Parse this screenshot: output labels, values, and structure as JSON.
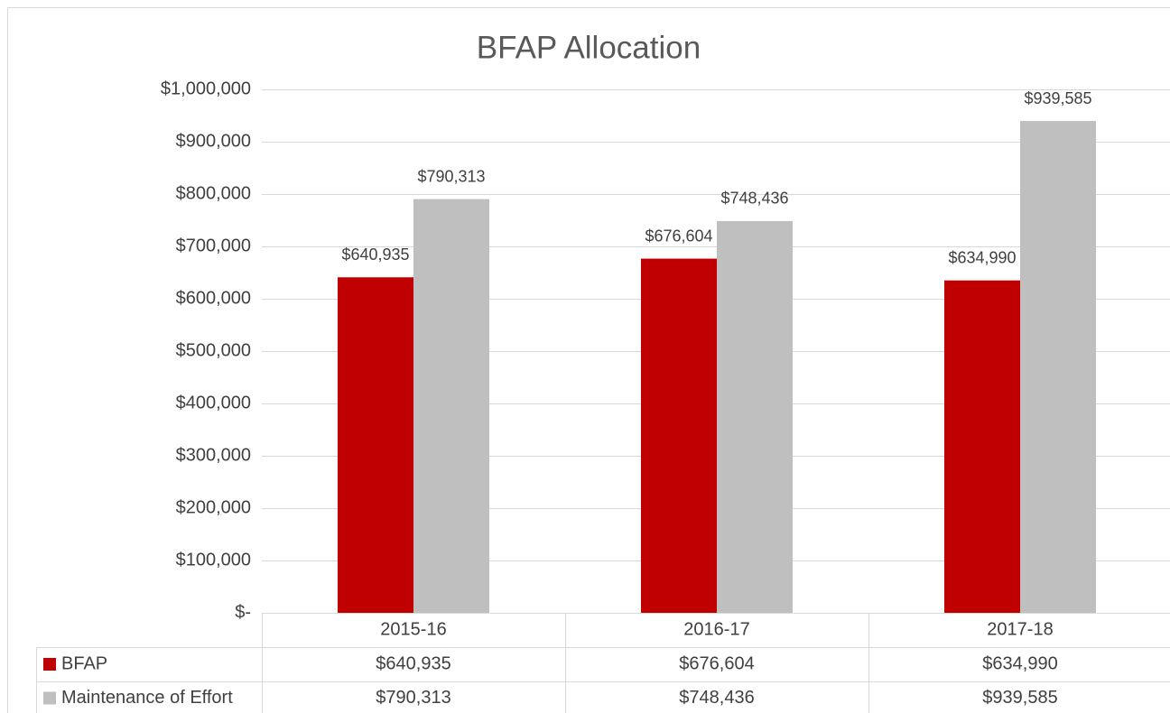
{
  "chart_data": {
    "type": "bar",
    "title": "BFAP Allocation",
    "categories": [
      "2015-16",
      "2016-17",
      "2017-18"
    ],
    "series": [
      {
        "name": "BFAP",
        "color": "#c00000",
        "values": [
          640935,
          676604,
          634990
        ],
        "value_labels": [
          "$640,935",
          "$676,604",
          "$634,990"
        ]
      },
      {
        "name": "Maintenance of Effort",
        "color": "#bfbfbf",
        "values": [
          790313,
          748436,
          939585
        ],
        "value_labels": [
          "$790,313",
          "$748,436",
          "$939,585"
        ]
      }
    ],
    "ylim": [
      0,
      1000000
    ],
    "yticks": [
      {
        "value": 0,
        "label": "$-"
      },
      {
        "value": 100000,
        "label": "$100,000"
      },
      {
        "value": 200000,
        "label": "$200,000"
      },
      {
        "value": 300000,
        "label": "$300,000"
      },
      {
        "value": 400000,
        "label": "$400,000"
      },
      {
        "value": 500000,
        "label": "$500,000"
      },
      {
        "value": 600000,
        "label": "$600,000"
      },
      {
        "value": 700000,
        "label": "$700,000"
      },
      {
        "value": 800000,
        "label": "$800,000"
      },
      {
        "value": 900000,
        "label": "$900,000"
      },
      {
        "value": 1000000,
        "label": "$1,000,000"
      }
    ],
    "grid": true,
    "data_table": true
  }
}
